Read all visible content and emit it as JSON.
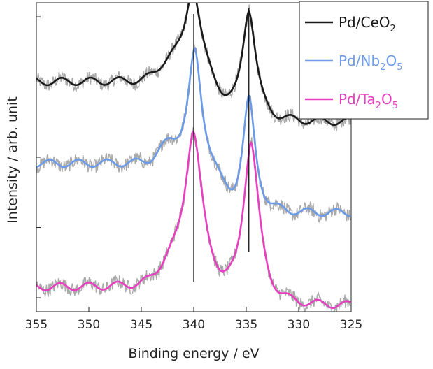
{
  "chart_data": {
    "type": "line",
    "xlabel": "Binding energy / eV",
    "ylabel": "Intensity / arb. unit",
    "xlim": [
      355,
      325
    ],
    "x_reversed": true,
    "x_ticks": [
      355,
      350,
      345,
      340,
      335,
      330,
      325
    ],
    "x_tick_labels": [
      "355",
      "350",
      "345",
      "340",
      "335",
      "330",
      "325"
    ],
    "y_tick_count": 5,
    "y_tick_labels_shown": false,
    "grid": false,
    "legend_position": "top-right",
    "reference_lines_x": [
      340.0,
      334.75
    ],
    "raw_data_color": "#a9a9a9",
    "series": [
      {
        "name": "Pd/CeO2",
        "legend_main": "Pd/CeO",
        "legend_parts": [
          {
            "t": "Pd/CeO",
            "sub": false
          },
          {
            "t": "2",
            "sub": true
          }
        ],
        "color": "#1a1a1a",
        "baseline_left": 0.745,
        "baseline_right": 0.615,
        "peaks": [
          {
            "x": 340.1,
            "height": 0.305,
            "width": 1.1
          },
          {
            "x": 334.75,
            "height": 0.365,
            "width": 1.0
          }
        ]
      },
      {
        "name": "Pd/Nb2O5",
        "legend_main": "Pd/Nb",
        "legend_parts": [
          {
            "t": "Pd/Nb",
            "sub": false
          },
          {
            "t": "2",
            "sub": true
          },
          {
            "t": "O",
            "sub": false
          },
          {
            "t": "5",
            "sub": true
          }
        ],
        "color": "#6b9be8",
        "baseline_left": 0.48,
        "baseline_right": 0.32,
        "peaks": [
          {
            "x": 339.9,
            "height": 0.36,
            "width": 0.95
          },
          {
            "x": 334.75,
            "height": 0.365,
            "width": 0.9
          }
        ]
      },
      {
        "name": "Pd/Ta2O5",
        "legend_main": "Pd/Ta",
        "legend_parts": [
          {
            "t": "Pd/Ta",
            "sub": false
          },
          {
            "t": "2",
            "sub": true
          },
          {
            "t": "O",
            "sub": false
          },
          {
            "t": "5",
            "sub": true
          }
        ],
        "color": "#e83fc1",
        "baseline_left": 0.08,
        "baseline_right": 0.02,
        "peaks": [
          {
            "x": 340.05,
            "height": 0.5,
            "width": 1.25
          },
          {
            "x": 334.55,
            "height": 0.525,
            "width": 1.15
          }
        ]
      }
    ]
  }
}
